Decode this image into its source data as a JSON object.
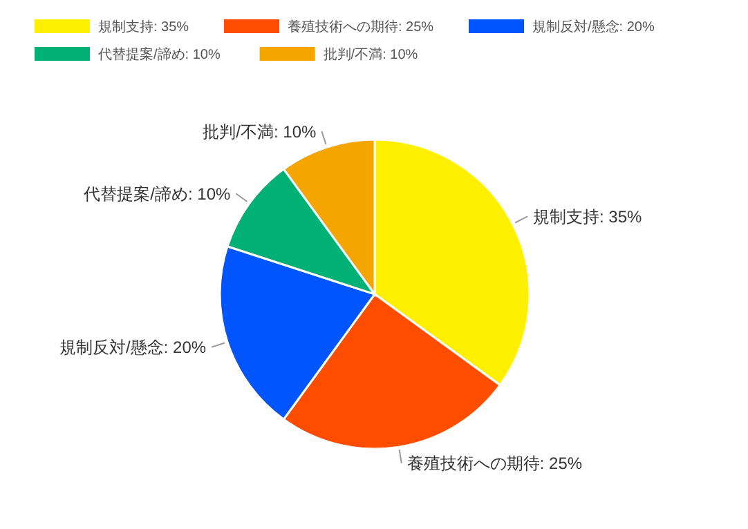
{
  "chart_data": {
    "type": "pie",
    "categories": [
      "規制支持",
      "養殖技術への期待",
      "規制反対/懸念",
      "代替提案/諦め",
      "批判/不満"
    ],
    "values": [
      35,
      25,
      20,
      10,
      10
    ],
    "value_labels": [
      "35%",
      "25%",
      "20%",
      "10%",
      "10%"
    ],
    "colors": [
      "#fff000",
      "#ff4d00",
      "#0055ff",
      "#00b074",
      "#f5a500"
    ],
    "legend": "top"
  }
}
